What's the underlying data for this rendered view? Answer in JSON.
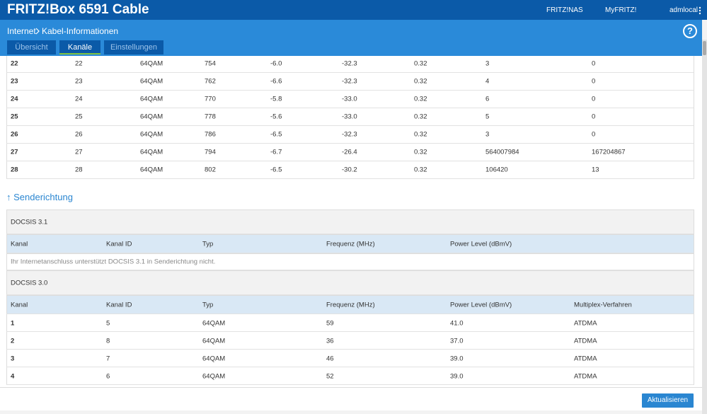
{
  "header": {
    "title": "FRITZ!Box 6591 Cable",
    "links": [
      "FRITZ!NAS",
      "MyFRITZ!",
      "admlocal"
    ]
  },
  "breadcrumb": [
    "Internet",
    "Kabel-Informationen"
  ],
  "help": "?",
  "tabs": {
    "items": [
      "Übersicht",
      "Kanäle",
      "Einstellungen"
    ],
    "active": 1
  },
  "downstream_table": {
    "rows": [
      [
        "22",
        "22",
        "64QAM",
        "754",
        "-6.0",
        "-32.3",
        "0.32",
        "3",
        "0"
      ],
      [
        "23",
        "23",
        "64QAM",
        "762",
        "-6.6",
        "-32.3",
        "0.32",
        "4",
        "0"
      ],
      [
        "24",
        "24",
        "64QAM",
        "770",
        "-5.8",
        "-33.0",
        "0.32",
        "6",
        "0"
      ],
      [
        "25",
        "25",
        "64QAM",
        "778",
        "-5.6",
        "-33.0",
        "0.32",
        "5",
        "0"
      ],
      [
        "26",
        "26",
        "64QAM",
        "786",
        "-6.5",
        "-32.3",
        "0.32",
        "3",
        "0"
      ],
      [
        "27",
        "27",
        "64QAM",
        "794",
        "-6.7",
        "-26.4",
        "0.32",
        "564007984",
        "167204867"
      ],
      [
        "28",
        "28",
        "64QAM",
        "802",
        "-6.5",
        "-30.2",
        "0.32",
        "106420",
        "13"
      ]
    ]
  },
  "upstream": {
    "title": "↑ Senderichtung",
    "docsis31": {
      "title": "DOCSIS 3.1",
      "columns": [
        "Kanal",
        "Kanal ID",
        "Typ",
        "Frequenz (MHz)",
        "Power Level (dBmV)"
      ],
      "message": "Ihr Internetanschluss unterstützt DOCSIS 3.1 in Senderichtung nicht."
    },
    "docsis30": {
      "title": "DOCSIS 3.0",
      "columns": [
        "Kanal",
        "Kanal ID",
        "Typ",
        "Frequenz (MHz)",
        "Power Level (dBmV)",
        "Multiplex-Verfahren"
      ],
      "rows": [
        [
          "1",
          "5",
          "64QAM",
          "59",
          "41.0",
          "ATDMA"
        ],
        [
          "2",
          "8",
          "64QAM",
          "36",
          "37.0",
          "ATDMA"
        ],
        [
          "3",
          "7",
          "64QAM",
          "46",
          "39.0",
          "ATDMA"
        ],
        [
          "4",
          "6",
          "64QAM",
          "52",
          "39.0",
          "ATDMA"
        ]
      ]
    }
  },
  "button": "Aktualisieren"
}
